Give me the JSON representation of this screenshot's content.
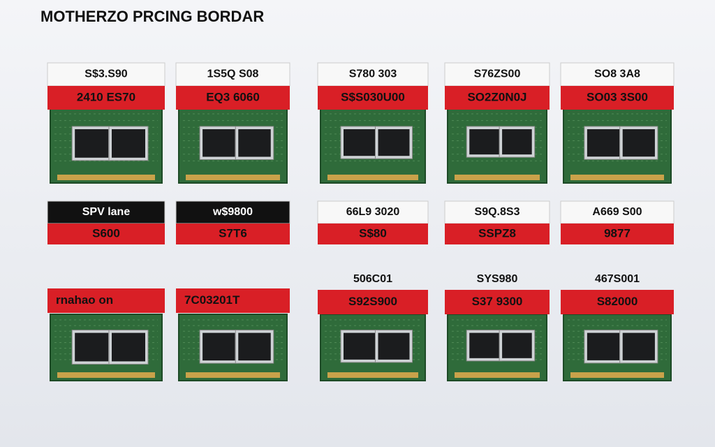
{
  "header": {
    "title": "MOTHERZO PRCING BORDAR"
  },
  "rows": [
    {
      "items": [
        {
          "labels": [
            "S$3.S90",
            "2410 ES70"
          ]
        },
        {
          "labels": [
            "1S5Q S08",
            "EQ3 6060"
          ]
        },
        {
          "labels": [
            "S780 303",
            "S$S030U00"
          ]
        },
        {
          "labels": [
            "S76ZS00",
            "SO2Z0N0J"
          ]
        },
        {
          "labels": [
            "SO8 3A8",
            "SO03 3S00"
          ]
        }
      ]
    },
    {
      "items": [
        {
          "labels": [
            "SPV lane",
            "S600"
          ]
        },
        {
          "labels": [
            "w$9800",
            "S7T6"
          ]
        },
        {
          "labels": [
            "66L9 3020",
            "S$80"
          ]
        },
        {
          "labels": [
            "S9Q.8S3",
            "SSPZ8"
          ]
        },
        {
          "labels": [
            "A669 S00",
            "9877"
          ]
        }
      ]
    },
    {
      "items": [
        {
          "labels": [
            "rnahao on"
          ]
        },
        {
          "labels": [
            "7C03201T"
          ]
        },
        {
          "labels": [
            "506C01",
            "S92S900"
          ]
        },
        {
          "labels": [
            "SYS980",
            "S37 9300"
          ]
        },
        {
          "labels": [
            "467S001",
            "S82000"
          ]
        }
      ]
    }
  ]
}
